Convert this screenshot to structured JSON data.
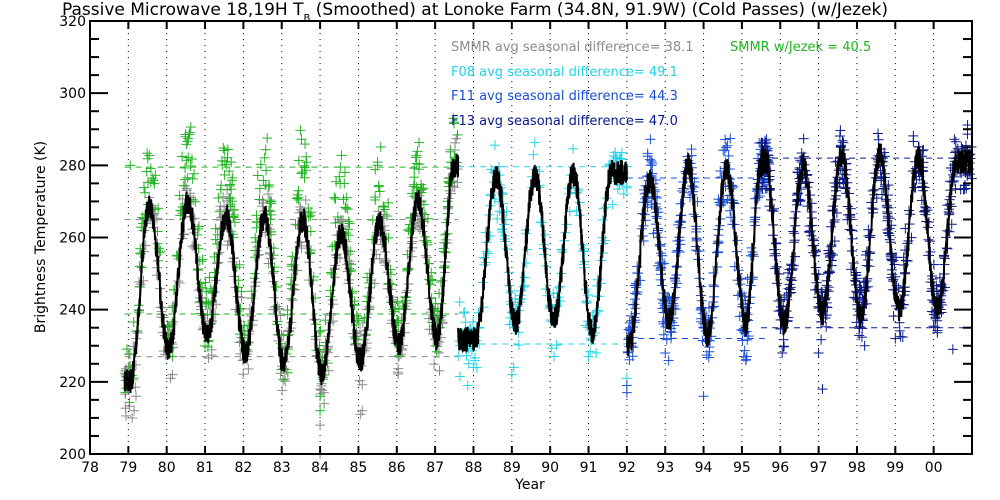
{
  "chart_data": {
    "type": "scatter",
    "title": "Passive Microwave 18,19H T",
    "title_subscript": "B",
    "title_rest": " (Smoothed) at Lonoke Farm (34.8N, 91.9W) (Cold Passes) (w/Jezek)",
    "xlabel": "Year",
    "ylabel": "Brightness Temperature (K)",
    "xlim": [
      78,
      101
    ],
    "ylim": [
      200,
      320
    ],
    "x_ticks": [
      78,
      79,
      80,
      81,
      82,
      83,
      84,
      85,
      86,
      87,
      88,
      89,
      90,
      91,
      92,
      93,
      94,
      95,
      96,
      97,
      98,
      99,
      100
    ],
    "x_tick_labels": [
      "78",
      "79",
      "80",
      "81",
      "82",
      "83",
      "84",
      "85",
      "86",
      "87",
      "88",
      "89",
      "90",
      "91",
      "92",
      "93",
      "94",
      "95",
      "96",
      "97",
      "98",
      "99",
      "00"
    ],
    "y_ticks": [
      200,
      220,
      240,
      260,
      280,
      300,
      320
    ],
    "y_minor_step": 5,
    "grid": "vertical dotted at each year",
    "series": [
      {
        "name": "SMMR",
        "color": "#8c8c8c",
        "x_range": [
          78.9,
          87.6
        ],
        "peaks_K": [
          {
            "x": 79.55,
            "y": 269
          },
          {
            "x": 80.55,
            "y": 270
          },
          {
            "x": 81.55,
            "y": 266
          },
          {
            "x": 82.55,
            "y": 266
          },
          {
            "x": 83.55,
            "y": 265
          },
          {
            "x": 84.55,
            "y": 261
          },
          {
            "x": 85.55,
            "y": 264
          },
          {
            "x": 86.55,
            "y": 270
          },
          {
            "x": 87.5,
            "y": 280
          }
        ],
        "troughs_K": [
          {
            "x": 79.05,
            "y": 220
          },
          {
            "x": 80.05,
            "y": 229
          },
          {
            "x": 81.05,
            "y": 233
          },
          {
            "x": 82.05,
            "y": 228
          },
          {
            "x": 83.05,
            "y": 225
          },
          {
            "x": 84.05,
            "y": 222
          },
          {
            "x": 85.05,
            "y": 226
          },
          {
            "x": 86.05,
            "y": 230
          },
          {
            "x": 87.05,
            "y": 232
          }
        ],
        "ref_lines_K": [
          265,
          227
        ],
        "outliers": [
          [
            79.1,
            210
          ],
          [
            79.15,
            212
          ],
          [
            79.2,
            216
          ],
          [
            80.1,
            221
          ],
          [
            80.15,
            222
          ],
          [
            83.1,
            229
          ],
          [
            84.0,
            218
          ],
          [
            84.0,
            208
          ],
          [
            84.0,
            200
          ],
          [
            85.05,
            211
          ],
          [
            85.1,
            212
          ],
          [
            87.1,
            228
          ]
        ]
      },
      {
        "name": "SMMR w/Jezek",
        "color": "#22b422",
        "x_range": [
          78.9,
          87.6
        ],
        "peaks_K": [
          {
            "x": 79.55,
            "y": 279
          },
          {
            "x": 80.55,
            "y": 284
          },
          {
            "x": 81.55,
            "y": 283
          },
          {
            "x": 82.55,
            "y": 279
          },
          {
            "x": 83.55,
            "y": 281
          },
          {
            "x": 84.55,
            "y": 277
          },
          {
            "x": 85.55,
            "y": 278
          },
          {
            "x": 86.55,
            "y": 280
          },
          {
            "x": 87.5,
            "y": 285
          }
        ],
        "troughs_K": [
          {
            "x": 79.05,
            "y": 221
          },
          {
            "x": 80.05,
            "y": 232
          },
          {
            "x": 81.05,
            "y": 237
          },
          {
            "x": 82.05,
            "y": 232
          },
          {
            "x": 83.05,
            "y": 227
          },
          {
            "x": 84.05,
            "y": 224
          },
          {
            "x": 85.05,
            "y": 230
          },
          {
            "x": 86.05,
            "y": 234
          },
          {
            "x": 87.05,
            "y": 236
          }
        ],
        "ref_lines_K": [
          279.5,
          238.8
        ],
        "outliers": [
          [
            84.0,
            216
          ],
          [
            84.0,
            212
          ],
          [
            80.15,
            227
          ],
          [
            79.05,
            280
          ]
        ]
      },
      {
        "name": "F08",
        "color": "#22d3e6",
        "x_range": [
          87.6,
          92.0
        ],
        "peaks_K": [
          {
            "x": 88.6,
            "y": 277
          },
          {
            "x": 89.6,
            "y": 277
          },
          {
            "x": 90.6,
            "y": 278
          },
          {
            "x": 91.6,
            "y": 278
          }
        ],
        "troughs_K": [
          {
            "x": 88.05,
            "y": 232
          },
          {
            "x": 89.1,
            "y": 236
          },
          {
            "x": 90.1,
            "y": 237
          },
          {
            "x": 91.1,
            "y": 234
          }
        ],
        "ref_lines_K": [
          279.6,
          230.5
        ],
        "outliers": [
          [
            87.85,
            219
          ],
          [
            88.0,
            224
          ],
          [
            89.0,
            222
          ],
          [
            89.05,
            224
          ],
          [
            90.1,
            227
          ],
          [
            91.0,
            227
          ],
          [
            91.2,
            228
          ],
          [
            92.0,
            221
          ]
        ]
      },
      {
        "name": "F11",
        "color": "#1a4fd6",
        "x_range": [
          92.0,
          95.7
        ],
        "peaks_K": [
          {
            "x": 92.6,
            "y": 276
          },
          {
            "x": 93.6,
            "y": 280
          },
          {
            "x": 94.6,
            "y": 279
          },
          {
            "x": 95.5,
            "y": 280
          }
        ],
        "troughs_K": [
          {
            "x": 92.05,
            "y": 230
          },
          {
            "x": 93.1,
            "y": 237
          },
          {
            "x": 94.1,
            "y": 233
          },
          {
            "x": 95.1,
            "y": 236
          }
        ],
        "ref_lines_K": [
          276.5,
          232
        ],
        "outliers": [
          [
            92.0,
            219
          ],
          [
            92.0,
            217
          ],
          [
            93.0,
            228
          ],
          [
            94.0,
            216
          ],
          [
            95.05,
            227
          ],
          [
            95.1,
            226
          ]
        ]
      },
      {
        "name": "F13",
        "color": "#0a1a8c",
        "x_range": [
          95.5,
          101
        ],
        "peaks_K": [
          {
            "x": 95.6,
            "y": 282
          },
          {
            "x": 96.6,
            "y": 280
          },
          {
            "x": 97.6,
            "y": 283
          },
          {
            "x": 98.6,
            "y": 283
          },
          {
            "x": 99.6,
            "y": 282
          },
          {
            "x": 100.6,
            "y": 281
          }
        ],
        "troughs_K": [
          {
            "x": 96.1,
            "y": 236
          },
          {
            "x": 97.1,
            "y": 239
          },
          {
            "x": 98.1,
            "y": 238
          },
          {
            "x": 99.1,
            "y": 240
          },
          {
            "x": 100.1,
            "y": 240
          }
        ],
        "ref_lines_K": [
          282,
          235
        ],
        "outliers": [
          [
            96.05,
            228
          ],
          [
            97.0,
            228
          ],
          [
            97.1,
            218
          ],
          [
            98.2,
            230
          ],
          [
            99.0,
            232
          ],
          [
            100.5,
            229
          ]
        ]
      },
      {
        "name": "Smoothed",
        "color": "#000000",
        "line": true
      }
    ],
    "annotations": [
      {
        "text": "SMMR avg seasonal difference=  38.1",
        "color": "#8c8c8c",
        "value": 38.1
      },
      {
        "text": "SMMR w/Jezek =  40.5",
        "color": "#22b422",
        "value": 40.5
      },
      {
        "text": "F08 avg seasonal difference=  49.1",
        "color": "#22d3e6",
        "value": 49.1
      },
      {
        "text": "F11 avg seasonal difference=  44.3",
        "color": "#1a4fd6",
        "value": 44.3
      },
      {
        "text": "F13 avg seasonal difference=  47.0",
        "color": "#0a1a8c",
        "value": 47.0
      }
    ],
    "legend": "top-right (text annotations)"
  }
}
